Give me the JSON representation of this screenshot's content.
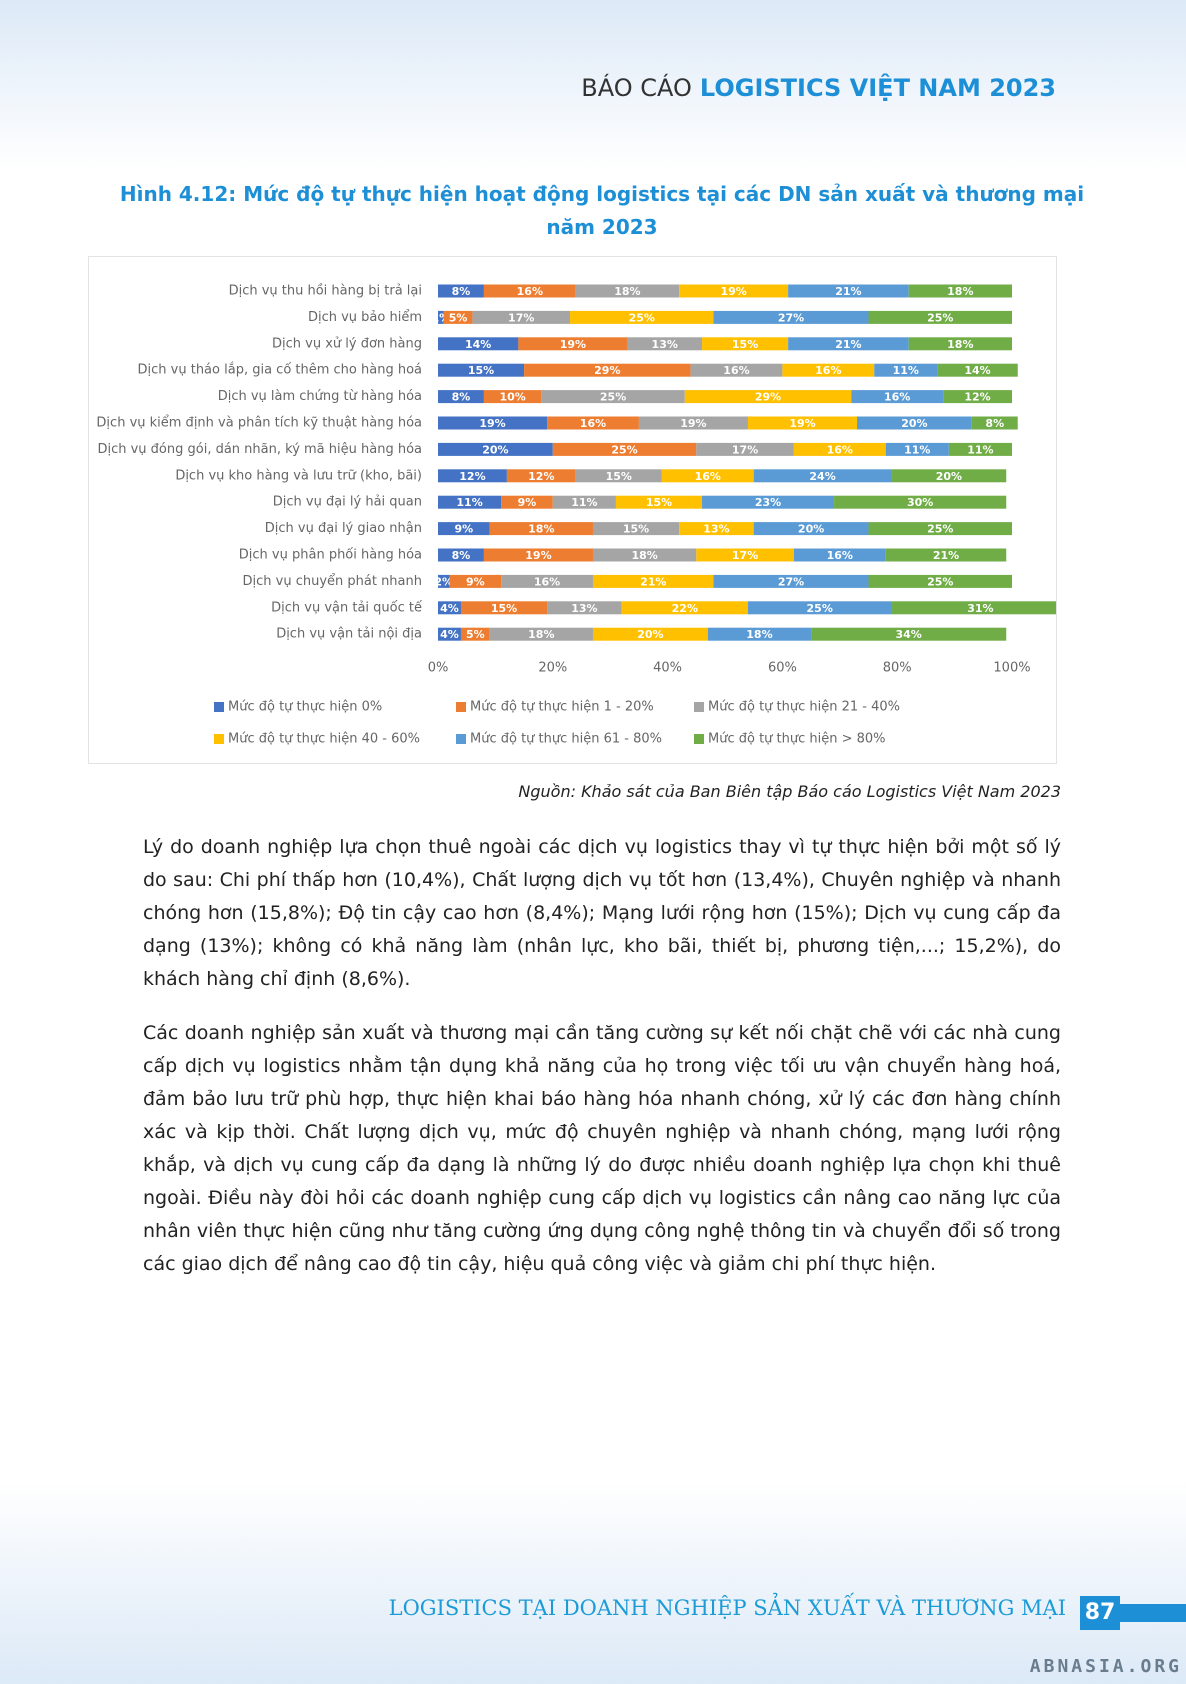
{
  "header": {
    "prefix": "BÁO CÁO",
    "title": "LOGISTICS VIỆT NAM 2023"
  },
  "caption": [
    "Hình 4.12: Mức độ tự thực hiện hoạt động logistics tại các DN sản xuất và thương mại",
    "năm 2023"
  ],
  "chart_data": {
    "type": "stacked-barh",
    "categories": [
      "Dịch vụ thu hồi hàng bị trả lại",
      "Dịch vụ bảo hiểm",
      "Dịch vụ xử lý đơn hàng",
      "Dịch vụ tháo lắp, gia cố thêm cho hàng hoá",
      "Dịch vụ làm chứng từ hàng hóa",
      "Dịch vụ kiểm định và phân tích kỹ thuật hàng hóa",
      "Dịch vụ đóng gói, dán nhãn, ký mã hiệu hàng hóa",
      "Dịch vụ kho hàng và lưu trữ (kho, bãi)",
      "Dịch vụ đại lý hải quan",
      "Dịch vụ đại lý giao nhận",
      "Dịch vụ phân phối hàng hóa",
      "Dịch vụ chuyển phát nhanh",
      "Dịch vụ vận tải quốc tế",
      "Dịch vụ vận tải nội địa"
    ],
    "series": [
      {
        "name": "Mức độ tự thực hiện 0%",
        "color": "#4472c4",
        "values": [
          8,
          1,
          14,
          15,
          8,
          19,
          20,
          12,
          11,
          9,
          8,
          2,
          4,
          4
        ],
        "value_labels": [
          "8%",
          "1%",
          "14%",
          "15%",
          "8%",
          "19%",
          "20%",
          "12%",
          "11%",
          "9%",
          "8%",
          "2%",
          "4%",
          "4%"
        ]
      },
      {
        "name": "Mức độ tự thực hiện 1 - 20%",
        "color": "#ed7d31",
        "values": [
          16,
          5,
          19,
          29,
          10,
          16,
          25,
          12,
          9,
          18,
          19,
          9,
          15,
          5
        ],
        "value_labels": [
          "16%",
          "5%",
          "19%",
          "29%",
          "10%",
          "16%",
          "25%",
          "12%",
          "9%",
          "18%",
          "19%",
          "9%",
          "15%",
          "5%"
        ]
      },
      {
        "name": "Mức độ tự thực hiện 21 - 40%",
        "color": "#a5a5a5",
        "values": [
          18,
          17,
          13,
          16,
          25,
          19,
          17,
          15,
          11,
          15,
          18,
          16,
          13,
          18
        ],
        "value_labels": [
          "18%",
          "17%",
          "13%",
          "16%",
          "25%",
          "19%",
          "17%",
          "15%",
          "11%",
          "15%",
          "18%",
          "16%",
          "13%",
          "18%"
        ]
      },
      {
        "name": "Mức độ tự thực hiện 40 - 60%",
        "color": "#ffc000",
        "values": [
          19,
          25,
          15,
          16,
          29,
          19,
          16,
          16,
          15,
          13,
          17,
          21,
          22,
          20
        ],
        "value_labels": [
          "19%",
          "25%",
          "15%",
          "16%",
          "29%",
          "19%",
          "16%",
          "16%",
          "15%",
          "13%",
          "17%",
          "21%",
          "22%",
          "20%"
        ]
      },
      {
        "name": "Mức độ tự thực hiện 61 - 80%",
        "color": "#5b9bd5",
        "values": [
          21,
          27,
          21,
          11,
          16,
          20,
          11,
          24,
          23,
          20,
          16,
          27,
          25,
          18
        ],
        "value_labels": [
          "21%",
          "27%",
          "21%",
          "11%",
          "16%",
          "20%",
          "11%",
          "24%",
          "23%",
          "20%",
          "16%",
          "27%",
          "25%",
          "18%"
        ]
      },
      {
        "name": "Mức độ tự thực hiện > 80%",
        "color": "#70ad47",
        "values": [
          18,
          25,
          18,
          14,
          12,
          8,
          11,
          20,
          30,
          25,
          21,
          25,
          31,
          34
        ],
        "value_labels": [
          "18%",
          "25%",
          "18%",
          "14%",
          "12%",
          "8%",
          "11%",
          "20%",
          "30%",
          "25%",
          "21%",
          "25%",
          "31%",
          "34%"
        ]
      }
    ],
    "xlim": [
      0,
      100
    ],
    "xticks": [
      {
        "value": 0,
        "label": "0%"
      },
      {
        "value": 20,
        "label": "20%"
      },
      {
        "value": 40,
        "label": "40%"
      },
      {
        "value": 60,
        "label": "60%"
      },
      {
        "value": 80,
        "label": "80%"
      },
      {
        "value": 100,
        "label": "100%"
      }
    ],
    "legend": "bottom"
  },
  "source": "Nguồn: Khảo sát của Ban Biên tập Báo cáo Logistics Việt Nam 2023",
  "paragraphs": [
    "Lý do doanh nghiệp lựa chọn thuê ngoài các dịch vụ logistics thay vì tự thực hiện bởi một số lý do sau: Chi phí thấp hơn (10,4%), Chất lượng dịch vụ tốt hơn (13,4%), Chuyên nghiệp và nhanh chóng hơn (15,8%); Độ tin cậy cao hơn (8,4%); Mạng lưới rộng hơn (15%); Dịch vụ cung cấp đa dạng (13%); không có khả năng làm (nhân lực, kho bãi, thiết bị, phương tiện,...; 15,2%), do khách hàng chỉ định (8,6%).",
    "Các doanh nghiệp sản xuất và thương mại cần tăng cường sự kết nối chặt chẽ với các nhà cung cấp dịch vụ logistics nhằm tận dụng khả năng của họ trong việc tối ưu vận chuyển hàng hoá, đảm bảo lưu trữ phù hợp, thực hiện khai báo hàng hóa nhanh chóng, xử lý các đơn hàng chính xác và kịp thời. Chất lượng dịch vụ, mức độ chuyên nghiệp và nhanh chóng, mạng lưới rộng khắp, và dịch vụ cung cấp đa dạng là những lý do được nhiều doanh nghiệp lựa chọn khi thuê ngoài. Điều này đòi hỏi các doanh nghiệp cung cấp dịch vụ logistics cần nâng cao năng lực của nhân viên thực hiện cũng như tăng cường ứng dụng công nghệ thông tin và chuyển đổi số trong các giao dịch để nâng cao độ tin cậy, hiệu quả công việc và giảm chi phí thực hiện."
  ],
  "footer": {
    "title": "LOGISTICS TẠI DOANH NGHIỆP SẢN XUẤT VÀ THƯƠNG MẠI",
    "page": "87",
    "watermark": "ABNASIA.ORG"
  }
}
